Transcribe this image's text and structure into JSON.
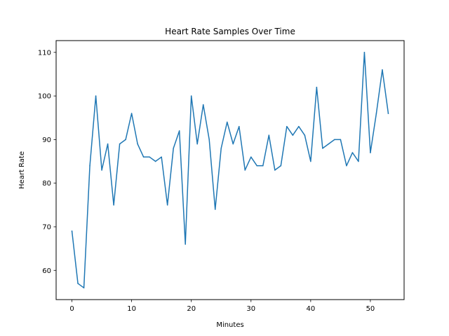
{
  "chart_data": {
    "type": "line",
    "title": "Heart Rate Samples Over Time",
    "xlabel": "Minutes",
    "ylabel": "Heart Rate",
    "xlim": [
      -2.65,
      55.65
    ],
    "ylim": [
      53.3,
      112.7
    ],
    "xticks": [
      0,
      10,
      20,
      30,
      40,
      50
    ],
    "yticks": [
      60,
      70,
      80,
      90,
      100,
      110
    ],
    "grid": false,
    "color": "#1f77b4",
    "series": [
      {
        "x": [
          0,
          1,
          2,
          3,
          4,
          5,
          6,
          7,
          8,
          9,
          10,
          11,
          12,
          13,
          14,
          15,
          16,
          17,
          18,
          19,
          20,
          21,
          22,
          23,
          24,
          25,
          26,
          27,
          28,
          29,
          30,
          31,
          32,
          33,
          34,
          35,
          36,
          37,
          38,
          39,
          40,
          41,
          42,
          43,
          44,
          45,
          46,
          47,
          48,
          49,
          50,
          51,
          52,
          53
        ],
        "values": [
          69,
          57,
          56,
          84,
          100,
          83,
          89,
          75,
          89,
          90,
          96,
          89,
          86,
          86,
          85,
          86,
          75,
          88,
          92,
          66,
          100,
          89,
          98,
          90,
          74,
          88,
          94,
          89,
          93,
          83,
          86,
          84,
          84,
          91,
          83,
          84,
          93,
          91,
          93,
          91,
          85,
          102,
          88,
          89,
          90,
          90,
          84,
          87,
          85,
          110,
          87,
          96,
          106,
          96
        ]
      }
    ]
  }
}
